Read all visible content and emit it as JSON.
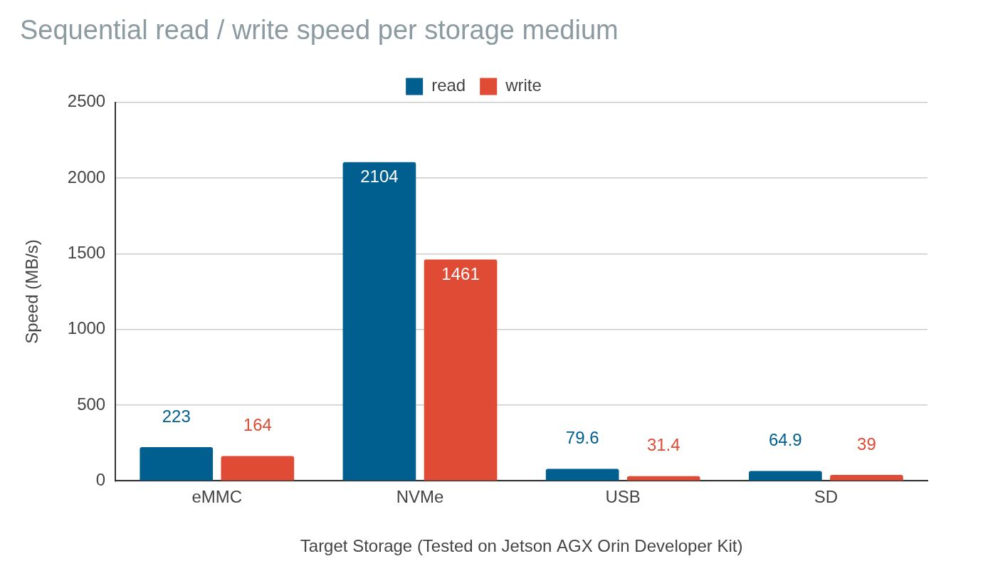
{
  "chart_data": {
    "type": "bar",
    "title": "Sequential read / write speed per storage medium",
    "x_label": "Target Storage (Tested on Jetson AGX Orin Developer Kit)",
    "y_label": "Speed (MB/s)",
    "categories": [
      "eMMC",
      "NVMe",
      "USB",
      "SD"
    ],
    "series": [
      {
        "name": "read",
        "color": "#005f8f",
        "values": [
          223,
          2104,
          79.6,
          64.9
        ]
      },
      {
        "name": "write",
        "color": "#e04b35",
        "values": [
          164,
          1461,
          31.4,
          39
        ]
      }
    ],
    "ylim": [
      0,
      2500
    ],
    "yticks": [
      0,
      500,
      1000,
      1500,
      2000,
      2500
    ],
    "grid": true,
    "legend": "top",
    "data_labels": true
  }
}
